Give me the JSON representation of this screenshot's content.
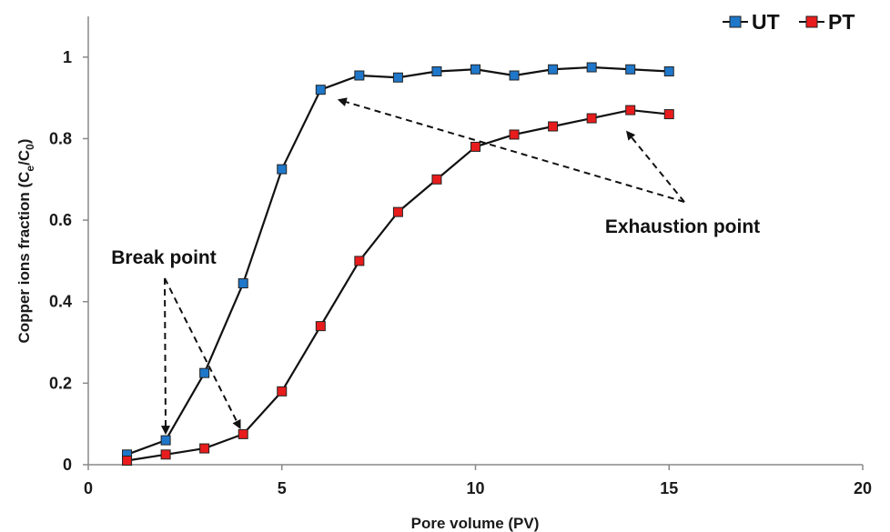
{
  "chart_data": {
    "type": "line",
    "title": "",
    "xlabel": "Pore volume (PV)",
    "ylabel": {
      "main": "Copper ions fraction (C",
      "sub1": "e",
      "slash": "/C",
      "sub2": "0",
      "close": ")"
    },
    "xlim": [
      0,
      20
    ],
    "ylim": [
      0,
      1.1
    ],
    "x_ticks": [
      0,
      5,
      10,
      15,
      20
    ],
    "x_tick_labels": [
      "0",
      "5",
      "10",
      "15",
      "20"
    ],
    "y_ticks": [
      0,
      0.2,
      0.4,
      0.6,
      0.8,
      1
    ],
    "y_tick_labels": [
      "0",
      "0.2",
      "0.4",
      "0.6",
      "0.8",
      "1"
    ],
    "grid": false,
    "legend_position": "top-right",
    "series": [
      {
        "name": "UT",
        "color": "#1f77c9",
        "x": [
          1,
          2,
          3,
          4,
          5,
          6,
          7,
          8,
          9,
          10,
          11,
          12,
          13,
          14,
          15
        ],
        "y": [
          0.025,
          0.06,
          0.225,
          0.445,
          0.725,
          0.92,
          0.955,
          0.95,
          0.965,
          0.97,
          0.955,
          0.97,
          0.975,
          0.97,
          0.965
        ]
      },
      {
        "name": "PT",
        "color": "#e81c1c",
        "x": [
          1,
          2,
          3,
          4,
          5,
          6,
          7,
          8,
          9,
          10,
          11,
          12,
          13,
          14,
          15
        ],
        "y": [
          0.01,
          0.025,
          0.04,
          0.075,
          0.18,
          0.34,
          0.5,
          0.62,
          0.7,
          0.78,
          0.81,
          0.83,
          0.85,
          0.87,
          0.86
        ]
      }
    ],
    "annotations": [
      {
        "text": "Break point",
        "arrows_to": [
          [
            2,
            0.06
          ],
          [
            4,
            0.075
          ]
        ]
      },
      {
        "text": "Exhaustion point",
        "arrows_to": [
          [
            6.3,
            0.9
          ],
          [
            13.8,
            0.83
          ]
        ]
      }
    ]
  }
}
